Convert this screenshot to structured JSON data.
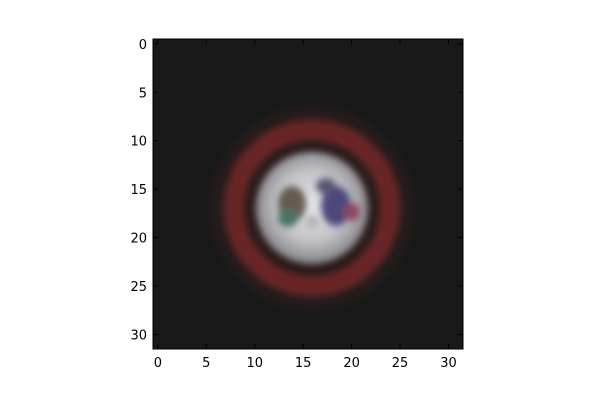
{
  "image": {
    "description_hidden": false,
    "x_ticks": [
      "0",
      "5",
      "10",
      "15",
      "20",
      "25",
      "30"
    ],
    "y_ticks": [
      "0",
      "5",
      "10",
      "15",
      "20",
      "25",
      "30"
    ],
    "colors": {
      "background": "#1b1b1b",
      "sign_ring": "#6d2424",
      "sign_center": "#d9d9dd",
      "axes_edge": "#000000"
    },
    "subject": "blurred circular road sign"
  }
}
